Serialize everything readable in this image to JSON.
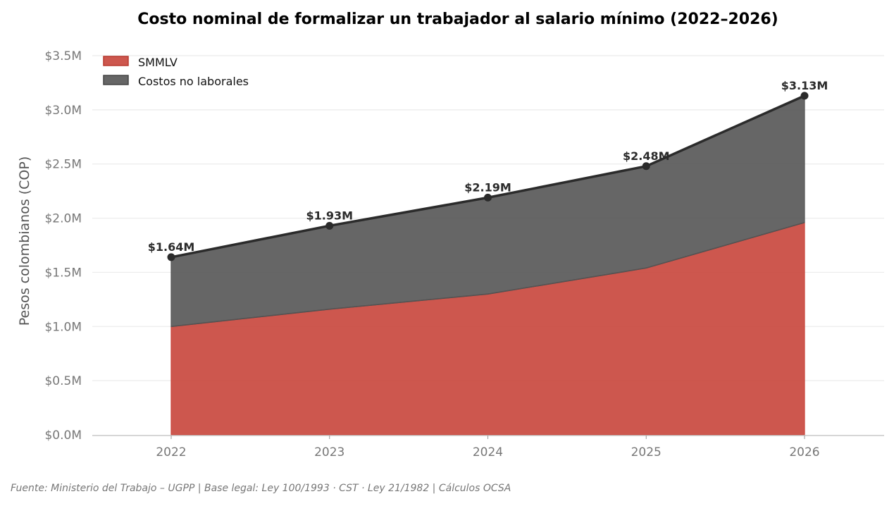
{
  "chart_data": {
    "type": "area",
    "stacked": true,
    "title": "Costo nominal de formalizar un trabajador al salario mínimo (2022–2026)",
    "xlabel": "",
    "ylabel": "Pesos colombianos (COP)",
    "x": [
      2022,
      2023,
      2024,
      2025,
      2026
    ],
    "x_tick_labels": [
      "2022",
      "2023",
      "2024",
      "2025",
      "2026"
    ],
    "xlim": [
      2021.5,
      2026.5
    ],
    "ylim": [
      0,
      3.5
    ],
    "y_unit": "millones COP",
    "y_ticks": [
      0,
      0.5,
      1.0,
      1.5,
      2.0,
      2.5,
      3.0,
      3.5
    ],
    "y_tick_labels": [
      "$0.0M",
      "$0.5M",
      "$1.0M",
      "$1.5M",
      "$2.0M",
      "$2.5M",
      "$3.0M",
      "$3.5M"
    ],
    "grid": "horizontal",
    "legend_position": "top-left",
    "series": [
      {
        "name": "SMMLV",
        "color": "#c8453b",
        "values": [
          1.0,
          1.16,
          1.3,
          1.54,
          1.96
        ]
      },
      {
        "name": "Costos no laborales",
        "color": "#555555",
        "values": [
          0.64,
          0.77,
          0.89,
          0.94,
          1.17
        ]
      }
    ],
    "total": {
      "name": "Total",
      "color": "#2b2b2b",
      "values": [
        1.64,
        1.93,
        2.19,
        2.48,
        3.13
      ],
      "labels": [
        "$1.64M",
        "$1.93M",
        "$2.19M",
        "$2.48M",
        "$3.13M"
      ]
    }
  },
  "footer": {
    "source": "Fuente: Ministerio del Trabajo – UGPP  |  Base legal: Ley 100/1993 · CST · Ley 21/1982  |  Cálculos OCSA"
  }
}
